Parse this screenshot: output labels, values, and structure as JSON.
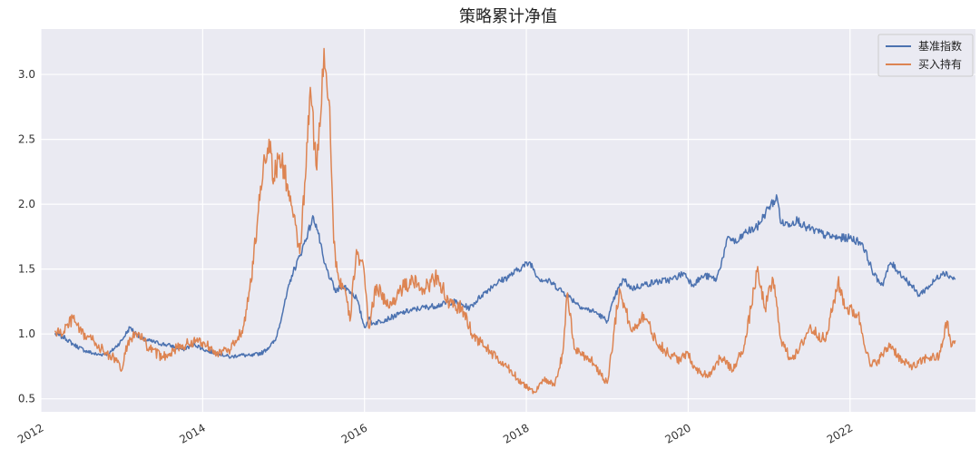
{
  "chart_data": {
    "type": "line",
    "title": "策略累计净值",
    "xlabel": "",
    "ylabel": "",
    "xlim": [
      2012.0,
      2023.55
    ],
    "ylim": [
      0.4,
      3.35
    ],
    "grid": true,
    "legend_position": "top-right",
    "x_ticks": [
      {
        "value": 2012,
        "label": "2012"
      },
      {
        "value": 2014,
        "label": "2014"
      },
      {
        "value": 2016,
        "label": "2016"
      },
      {
        "value": 2018,
        "label": "2018"
      },
      {
        "value": 2020,
        "label": "2020"
      },
      {
        "value": 2022,
        "label": "2022"
      }
    ],
    "y_ticks": [
      {
        "value": 0.5,
        "label": "0.5"
      },
      {
        "value": 1.0,
        "label": "1.0"
      },
      {
        "value": 1.5,
        "label": "1.5"
      },
      {
        "value": 2.0,
        "label": "2.0"
      },
      {
        "value": 2.5,
        "label": "2.5"
      },
      {
        "value": 3.0,
        "label": "3.0"
      }
    ],
    "series": [
      {
        "name": "基准指数",
        "color": "#4c72b0",
        "x": [
          2012.17,
          2012.3,
          2012.4,
          2012.55,
          2012.7,
          2012.85,
          2013.0,
          2013.1,
          2013.25,
          2013.45,
          2013.6,
          2013.75,
          2013.9,
          2014.05,
          2014.2,
          2014.35,
          2014.45,
          2014.6,
          2014.75,
          2014.9,
          2015.0,
          2015.1,
          2015.2,
          2015.3,
          2015.37,
          2015.42,
          2015.5,
          2015.58,
          2015.65,
          2015.72,
          2015.8,
          2015.9,
          2016.0,
          2016.05,
          2016.1,
          2016.3,
          2016.5,
          2016.7,
          2016.9,
          2017.1,
          2017.3,
          2017.45,
          2017.6,
          2017.8,
          2017.95,
          2018.05,
          2018.15,
          2018.3,
          2018.5,
          2018.7,
          2018.85,
          2019.0,
          2019.1,
          2019.2,
          2019.3,
          2019.45,
          2019.6,
          2019.8,
          2019.95,
          2020.05,
          2020.2,
          2020.35,
          2020.5,
          2020.6,
          2020.7,
          2020.85,
          2021.0,
          2021.1,
          2021.15,
          2021.25,
          2021.35,
          2021.45,
          2021.55,
          2021.7,
          2021.85,
          2022.0,
          2022.15,
          2022.3,
          2022.4,
          2022.5,
          2022.6,
          2022.75,
          2022.85,
          2023.0,
          2023.15,
          2023.3
        ],
        "y": [
          1.0,
          0.97,
          0.92,
          0.87,
          0.84,
          0.85,
          0.95,
          1.05,
          0.96,
          0.93,
          0.91,
          0.88,
          0.92,
          0.87,
          0.85,
          0.82,
          0.84,
          0.83,
          0.86,
          0.95,
          1.2,
          1.45,
          1.6,
          1.78,
          1.9,
          1.8,
          1.55,
          1.42,
          1.32,
          1.38,
          1.34,
          1.28,
          1.05,
          1.12,
          1.08,
          1.12,
          1.17,
          1.2,
          1.22,
          1.25,
          1.2,
          1.3,
          1.38,
          1.45,
          1.52,
          1.55,
          1.43,
          1.4,
          1.3,
          1.2,
          1.17,
          1.1,
          1.3,
          1.42,
          1.35,
          1.38,
          1.4,
          1.42,
          1.47,
          1.38,
          1.45,
          1.42,
          1.75,
          1.7,
          1.78,
          1.82,
          1.98,
          2.05,
          1.85,
          1.85,
          1.88,
          1.82,
          1.8,
          1.76,
          1.74,
          1.74,
          1.7,
          1.45,
          1.38,
          1.55,
          1.48,
          1.38,
          1.3,
          1.38,
          1.48,
          1.42
        ]
      },
      {
        "name": "买入持有",
        "color": "#dd8452",
        "x": [
          2012.17,
          2012.25,
          2012.4,
          2012.5,
          2012.65,
          2012.8,
          2012.9,
          2013.0,
          2013.08,
          2013.2,
          2013.35,
          2013.5,
          2013.65,
          2013.8,
          2013.95,
          2014.1,
          2014.2,
          2014.35,
          2014.5,
          2014.6,
          2014.68,
          2014.75,
          2014.82,
          2014.88,
          2014.95,
          2015.05,
          2015.12,
          2015.2,
          2015.27,
          2015.33,
          2015.4,
          2015.45,
          2015.5,
          2015.57,
          2015.62,
          2015.68,
          2015.75,
          2015.82,
          2015.9,
          2016.0,
          2016.05,
          2016.15,
          2016.3,
          2016.45,
          2016.6,
          2016.75,
          2016.9,
          2017.05,
          2017.2,
          2017.35,
          2017.5,
          2017.65,
          2017.8,
          2017.95,
          2018.1,
          2018.2,
          2018.35,
          2018.45,
          2018.5,
          2018.6,
          2018.8,
          2019.0,
          2019.05,
          2019.15,
          2019.3,
          2019.45,
          2019.6,
          2019.75,
          2019.9,
          2020.0,
          2020.1,
          2020.25,
          2020.4,
          2020.55,
          2020.7,
          2020.85,
          2020.95,
          2021.05,
          2021.15,
          2021.25,
          2021.35,
          2021.5,
          2021.7,
          2021.85,
          2021.95,
          2022.1,
          2022.25,
          2022.35,
          2022.5,
          2022.65,
          2022.8,
          2022.95,
          2023.1,
          2023.2,
          2023.25,
          2023.3
        ],
        "y": [
          1.02,
          1.0,
          1.12,
          1.0,
          0.95,
          0.85,
          0.82,
          0.72,
          0.95,
          1.0,
          0.88,
          0.82,
          0.88,
          0.92,
          0.95,
          0.9,
          0.85,
          0.88,
          1.05,
          1.4,
          1.9,
          2.3,
          2.5,
          2.2,
          2.38,
          2.15,
          1.9,
          1.62,
          2.2,
          2.9,
          2.3,
          2.6,
          3.2,
          2.75,
          1.7,
          1.42,
          1.35,
          1.1,
          1.65,
          1.45,
          1.05,
          1.38,
          1.2,
          1.35,
          1.4,
          1.35,
          1.45,
          1.22,
          1.2,
          0.98,
          0.9,
          0.8,
          0.72,
          0.62,
          0.55,
          0.65,
          0.6,
          0.85,
          1.3,
          0.88,
          0.8,
          0.62,
          0.85,
          1.35,
          1.02,
          1.15,
          0.95,
          0.85,
          0.8,
          0.85,
          0.72,
          0.68,
          0.82,
          0.72,
          0.92,
          1.48,
          1.2,
          1.42,
          0.95,
          0.82,
          0.85,
          1.05,
          0.95,
          1.4,
          1.2,
          1.15,
          0.75,
          0.8,
          0.92,
          0.78,
          0.75,
          0.82,
          0.82,
          1.1,
          0.9,
          0.95
        ]
      }
    ]
  }
}
